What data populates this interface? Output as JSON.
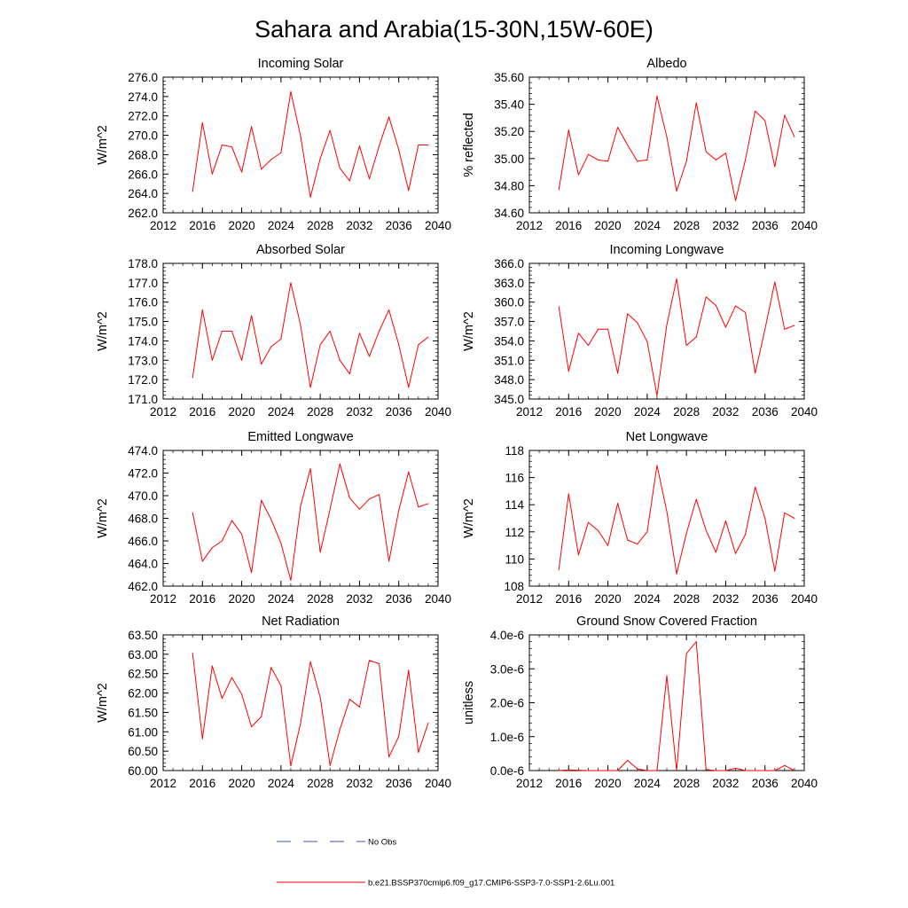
{
  "figure_title": "Sahara and Arabia(15-30N,15W-60E)",
  "legend": {
    "entries": [
      {
        "label": "No Obs",
        "color": "#3b4fb8",
        "style": "dashed"
      },
      {
        "label": "b.e21.BSSP370cmip6.f09_g17.CMIP6-SSP3-7.0-SSP1-2.6Lu.001",
        "color": "#ff0000",
        "style": "solid"
      }
    ]
  },
  "chart_data": [
    {
      "type": "line",
      "title": "Incoming Solar",
      "ylabel": "W/m^2",
      "xlabel": "",
      "xlim": [
        2012,
        2040
      ],
      "ylim": [
        262,
        276
      ],
      "xticks": [
        "2012",
        "2016",
        "2020",
        "2024",
        "2028",
        "2032",
        "2036",
        "2040"
      ],
      "yticks": [
        "262.0",
        "264.0",
        "266.0",
        "268.0",
        "270.0",
        "272.0",
        "274.0",
        "276.0"
      ],
      "series": [
        {
          "color": "#ff0000",
          "x": [
            2015,
            2016,
            2017,
            2018,
            2019,
            2020,
            2021,
            2022,
            2023,
            2024,
            2025,
            2026,
            2027,
            2028,
            2029,
            2030,
            2031,
            2032,
            2033,
            2034,
            2035,
            2036,
            2037,
            2038,
            2039
          ],
          "y": [
            264.2,
            271.3,
            266.0,
            269.0,
            268.8,
            266.2,
            270.9,
            266.5,
            267.5,
            268.2,
            274.5,
            269.9,
            263.6,
            267.6,
            270.5,
            266.6,
            265.3,
            268.9,
            265.5,
            268.9,
            271.9,
            268.5,
            264.3,
            269.0,
            269.0
          ]
        }
      ]
    },
    {
      "type": "line",
      "title": "Albedo",
      "ylabel": "% reflected",
      "xlabel": "",
      "xlim": [
        2012,
        2040
      ],
      "ylim": [
        34.6,
        35.6
      ],
      "xticks": [
        "2012",
        "2016",
        "2020",
        "2024",
        "2028",
        "2032",
        "2036",
        "2040"
      ],
      "yticks": [
        "34.60",
        "34.80",
        "35.00",
        "35.20",
        "35.40",
        "35.60"
      ],
      "series": [
        {
          "color": "#ff0000",
          "x": [
            2015,
            2016,
            2017,
            2018,
            2019,
            2020,
            2021,
            2022,
            2023,
            2024,
            2025,
            2026,
            2027,
            2028,
            2029,
            2030,
            2031,
            2032,
            2033,
            2034,
            2035,
            2036,
            2037,
            2038,
            2039
          ],
          "y": [
            34.77,
            35.21,
            34.88,
            35.03,
            34.99,
            34.98,
            35.23,
            35.1,
            34.98,
            34.99,
            35.46,
            35.16,
            34.76,
            34.98,
            35.41,
            35.05,
            34.99,
            35.04,
            34.69,
            34.99,
            35.35,
            35.28,
            34.94,
            35.32,
            35.16
          ]
        }
      ]
    },
    {
      "type": "line",
      "title": "Absorbed Solar",
      "ylabel": "W/m^2",
      "xlabel": "",
      "xlim": [
        2012,
        2040
      ],
      "ylim": [
        171,
        178
      ],
      "xticks": [
        "2012",
        "2016",
        "2020",
        "2024",
        "2028",
        "2032",
        "2036",
        "2040"
      ],
      "yticks": [
        "171.0",
        "172.0",
        "173.0",
        "174.0",
        "175.0",
        "176.0",
        "177.0",
        "178.0"
      ],
      "series": [
        {
          "color": "#ff0000",
          "x": [
            2015,
            2016,
            2017,
            2018,
            2019,
            2020,
            2021,
            2022,
            2023,
            2024,
            2025,
            2026,
            2027,
            2028,
            2029,
            2030,
            2031,
            2032,
            2033,
            2034,
            2035,
            2036,
            2037,
            2038,
            2039
          ],
          "y": [
            172.1,
            175.6,
            173.0,
            174.5,
            174.5,
            173.0,
            175.3,
            172.8,
            173.7,
            174.1,
            177.0,
            174.8,
            171.6,
            173.8,
            174.5,
            173.0,
            172.3,
            174.4,
            173.2,
            174.5,
            175.6,
            173.8,
            171.6,
            173.8,
            174.2
          ]
        }
      ]
    },
    {
      "type": "line",
      "title": "Incoming Longwave",
      "ylabel": "W/m^2",
      "xlabel": "",
      "xlim": [
        2012,
        2040
      ],
      "ylim": [
        345,
        366
      ],
      "xticks": [
        "2012",
        "2016",
        "2020",
        "2024",
        "2028",
        "2032",
        "2036",
        "2040"
      ],
      "yticks": [
        "345.0",
        "348.0",
        "351.0",
        "354.0",
        "357.0",
        "360.0",
        "363.0",
        "366.0"
      ],
      "series": [
        {
          "color": "#ff0000",
          "x": [
            2015,
            2016,
            2017,
            2018,
            2019,
            2020,
            2021,
            2022,
            2023,
            2024,
            2025,
            2026,
            2027,
            2028,
            2029,
            2030,
            2031,
            2032,
            2033,
            2034,
            2035,
            2036,
            2037,
            2038,
            2039
          ],
          "y": [
            359.3,
            349.3,
            355.2,
            353.3,
            355.8,
            355.8,
            349.0,
            358.2,
            356.8,
            353.9,
            345.5,
            356.5,
            363.6,
            353.3,
            354.6,
            360.8,
            359.5,
            356.1,
            359.4,
            358.4,
            349.0,
            355.8,
            363.1,
            355.8,
            356.4
          ]
        }
      ]
    },
    {
      "type": "line",
      "title": "Emitted Longwave",
      "ylabel": "W/m^2",
      "xlabel": "",
      "xlim": [
        2012,
        2040
      ],
      "ylim": [
        462,
        474
      ],
      "xticks": [
        "2012",
        "2016",
        "2020",
        "2024",
        "2028",
        "2032",
        "2036",
        "2040"
      ],
      "yticks": [
        "462.0",
        "464.0",
        "466.0",
        "468.0",
        "470.0",
        "472.0",
        "474.0"
      ],
      "series": [
        {
          "color": "#ff0000",
          "x": [
            2015,
            2016,
            2017,
            2018,
            2019,
            2020,
            2021,
            2022,
            2023,
            2024,
            2025,
            2026,
            2027,
            2028,
            2029,
            2030,
            2031,
            2032,
            2033,
            2034,
            2035,
            2036,
            2037,
            2038,
            2039
          ],
          "y": [
            468.5,
            464.2,
            465.4,
            466.0,
            467.8,
            466.6,
            463.2,
            469.6,
            467.9,
            465.8,
            462.5,
            469.1,
            472.4,
            465.0,
            468.8,
            472.8,
            469.8,
            468.8,
            469.7,
            470.1,
            464.2,
            468.7,
            472.1,
            469.0,
            469.3
          ]
        }
      ]
    },
    {
      "type": "line",
      "title": "Net Longwave",
      "ylabel": "W/m^2",
      "xlabel": "",
      "xlim": [
        2012,
        2040
      ],
      "ylim": [
        108,
        118
      ],
      "xticks": [
        "2012",
        "2016",
        "2020",
        "2024",
        "2028",
        "2032",
        "2036",
        "2040"
      ],
      "yticks": [
        "108",
        "110",
        "112",
        "114",
        "116",
        "118"
      ],
      "series": [
        {
          "color": "#ff0000",
          "x": [
            2015,
            2016,
            2017,
            2018,
            2019,
            2020,
            2021,
            2022,
            2023,
            2024,
            2025,
            2026,
            2027,
            2028,
            2029,
            2030,
            2031,
            2032,
            2033,
            2034,
            2035,
            2036,
            2037,
            2038,
            2039
          ],
          "y": [
            109.2,
            114.8,
            110.3,
            112.7,
            112.1,
            111.0,
            114.1,
            111.4,
            111.1,
            112.0,
            116.9,
            113.5,
            108.9,
            111.9,
            114.4,
            112.1,
            110.5,
            112.8,
            110.4,
            111.8,
            115.3,
            113.0,
            109.1,
            113.4,
            113.0
          ]
        }
      ]
    },
    {
      "type": "line",
      "title": "Net Radiation",
      "ylabel": "W/m^2",
      "xlabel": "",
      "xlim": [
        2012,
        2040
      ],
      "ylim": [
        60,
        63.5
      ],
      "xticks": [
        "2012",
        "2016",
        "2020",
        "2024",
        "2028",
        "2032",
        "2036",
        "2040"
      ],
      "yticks": [
        "60.00",
        "60.50",
        "61.00",
        "61.50",
        "62.00",
        "62.50",
        "63.00",
        "63.50"
      ],
      "series": [
        {
          "color": "#ff0000",
          "x": [
            2015,
            2016,
            2017,
            2018,
            2019,
            2020,
            2021,
            2022,
            2023,
            2024,
            2025,
            2026,
            2027,
            2028,
            2029,
            2030,
            2031,
            2032,
            2033,
            2034,
            2035,
            2036,
            2037,
            2038,
            2039
          ],
          "y": [
            63.03,
            60.82,
            62.7,
            61.86,
            62.4,
            61.97,
            61.13,
            61.39,
            62.66,
            62.19,
            60.12,
            61.22,
            62.81,
            61.89,
            60.13,
            61.06,
            61.84,
            61.64,
            62.84,
            62.76,
            60.35,
            60.88,
            62.59,
            60.47,
            61.23
          ]
        }
      ]
    },
    {
      "type": "line",
      "title": "Ground Snow Covered Fraction",
      "ylabel": "unitless",
      "xlabel": "",
      "xlim": [
        2012,
        2040
      ],
      "ylim": [
        0,
        4e-06
      ],
      "xticks": [
        "2012",
        "2016",
        "2020",
        "2024",
        "2028",
        "2032",
        "2036",
        "2040"
      ],
      "yticks": [
        "0.0e-6",
        "1.0e-6",
        "2.0e-6",
        "3.0e-6",
        "4.0e-6"
      ],
      "series": [
        {
          "color": "#ff0000",
          "x": [
            2015,
            2016,
            2017,
            2018,
            2019,
            2020,
            2021,
            2022,
            2023,
            2024,
            2025,
            2026,
            2027,
            2028,
            2029,
            2030,
            2031,
            2032,
            2033,
            2034,
            2035,
            2036,
            2037,
            2038,
            2039
          ],
          "y": [
            0.0,
            2e-08,
            1e-08,
            0.0,
            0.0,
            0.0,
            0.0,
            3e-07,
            5e-08,
            0.0,
            0.0,
            2.8e-06,
            0.0,
            3.45e-06,
            3.8e-06,
            3e-08,
            0.0,
            0.0,
            7e-08,
            0.0,
            0.0,
            0.0,
            0.0,
            1.5e-07,
            0.0
          ]
        }
      ]
    }
  ]
}
